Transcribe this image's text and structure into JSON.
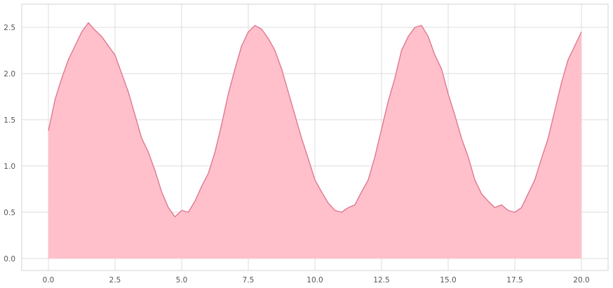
{
  "chart_data": {
    "type": "area",
    "title": "",
    "xlabel": "",
    "ylabel": "",
    "xlim": [
      -1.0,
      21.0
    ],
    "ylim": [
      -0.13,
      2.75
    ],
    "xticks": [
      0.0,
      2.5,
      5.0,
      7.5,
      10.0,
      12.5,
      15.0,
      17.5,
      20.0
    ],
    "xtick_labels": [
      "0.0",
      "2.5",
      "5.0",
      "7.5",
      "10.0",
      "12.5",
      "15.0",
      "17.5",
      "20.0"
    ],
    "yticks": [
      0.0,
      0.5,
      1.0,
      1.5,
      2.0,
      2.5
    ],
    "ytick_labels": [
      "0.0",
      "0.5",
      "1.0",
      "1.5",
      "2.0",
      "2.5"
    ],
    "grid": true,
    "legend": "none",
    "colors": {
      "fill": "#ffc0cb",
      "line": "#e07890",
      "grid": "#dcdcdc",
      "tick_text": "#555555"
    },
    "series": [
      {
        "x": [
          0.0,
          0.25,
          0.5,
          0.75,
          1.0,
          1.25,
          1.5,
          1.75,
          2.0,
          2.25,
          2.5,
          2.75,
          3.0,
          3.25,
          3.5,
          3.75,
          4.0,
          4.25,
          4.5,
          4.75,
          5.0,
          5.25,
          5.5,
          5.75,
          6.0,
          6.25,
          6.5,
          6.75,
          7.0,
          7.25,
          7.5,
          7.75,
          8.0,
          8.25,
          8.5,
          8.75,
          9.0,
          9.25,
          9.5,
          9.75,
          10.0,
          10.25,
          10.5,
          10.75,
          11.0,
          11.25,
          11.5,
          11.75,
          12.0,
          12.25,
          12.5,
          12.75,
          13.0,
          13.25,
          13.5,
          13.75,
          14.0,
          14.25,
          14.5,
          14.75,
          15.0,
          15.25,
          15.5,
          15.75,
          16.0,
          16.25,
          16.5,
          16.75,
          17.0,
          17.25,
          17.5,
          17.75,
          18.0,
          18.25,
          18.5,
          18.75,
          19.0,
          19.25,
          19.5,
          19.75,
          20.0
        ],
        "y": [
          1.38,
          1.72,
          1.95,
          2.15,
          2.3,
          2.45,
          2.55,
          2.47,
          2.4,
          2.3,
          2.2,
          2.0,
          1.8,
          1.55,
          1.3,
          1.15,
          0.95,
          0.72,
          0.55,
          0.45,
          0.52,
          0.5,
          0.62,
          0.78,
          0.92,
          1.15,
          1.45,
          1.78,
          2.05,
          2.3,
          2.45,
          2.52,
          2.48,
          2.38,
          2.25,
          2.05,
          1.8,
          1.55,
          1.3,
          1.08,
          0.85,
          0.72,
          0.6,
          0.52,
          0.5,
          0.55,
          0.58,
          0.72,
          0.85,
          1.1,
          1.4,
          1.7,
          1.95,
          2.25,
          2.4,
          2.5,
          2.52,
          2.4,
          2.2,
          2.05,
          1.78,
          1.55,
          1.3,
          1.1,
          0.85,
          0.7,
          0.62,
          0.55,
          0.58,
          0.52,
          0.5,
          0.55,
          0.7,
          0.85,
          1.08,
          1.3,
          1.6,
          1.9,
          2.15,
          2.3,
          2.45
        ]
      }
    ]
  }
}
